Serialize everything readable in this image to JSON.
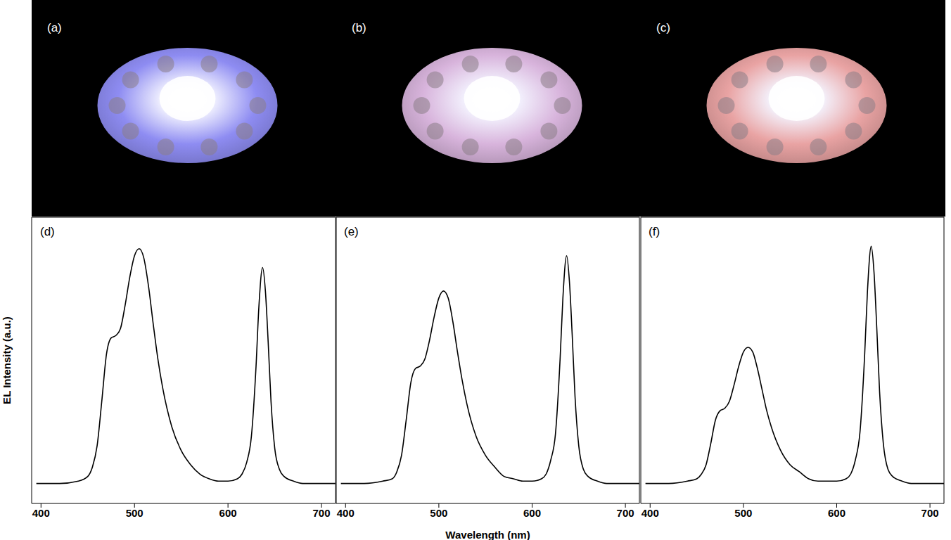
{
  "photos": [
    {
      "label": "(a)",
      "color": "#8e8cf2"
    },
    {
      "label": "(b)",
      "color": "#d8b4dc"
    },
    {
      "label": "(c)",
      "color": "#e9a3a3"
    }
  ],
  "chart_data": [
    {
      "type": "line",
      "label": "(d)",
      "y_label": "EL Intensity (a.u.)",
      "color": "#000000",
      "xlim": [
        390,
        715
      ],
      "xticks": [
        400,
        500,
        600,
        700
      ],
      "ylim": [
        -0.085,
        1.134
      ],
      "tick_labels": "x",
      "x": [
        395,
        400,
        420,
        440,
        450,
        455,
        460,
        465,
        470,
        475,
        480,
        485,
        490,
        495,
        500,
        505,
        510,
        515,
        520,
        525,
        530,
        540,
        550,
        560,
        570,
        580,
        590,
        600,
        610,
        615,
        620,
        625,
        630,
        633,
        637,
        640,
        643,
        646,
        650,
        655,
        660,
        670,
        680,
        700,
        715
      ],
      "values": [
        0,
        0,
        0,
        0.01,
        0.03,
        0.07,
        0.16,
        0.35,
        0.55,
        0.62,
        0.63,
        0.66,
        0.76,
        0.88,
        0.97,
        1.0,
        0.96,
        0.84,
        0.68,
        0.53,
        0.41,
        0.24,
        0.14,
        0.08,
        0.04,
        0.02,
        0.01,
        0.01,
        0.02,
        0.04,
        0.09,
        0.2,
        0.5,
        0.75,
        0.92,
        0.82,
        0.6,
        0.35,
        0.15,
        0.06,
        0.03,
        0.01,
        0,
        0,
        0
      ]
    },
    {
      "type": "line",
      "label": "(e)",
      "x_label": "Wavelength (nm)",
      "color": "#000000",
      "xlim": [
        390,
        715
      ],
      "xticks": [
        400,
        500,
        600,
        700
      ],
      "ylim": [
        -0.085,
        1.134
      ],
      "tick_labels": "x",
      "x": [
        395,
        400,
        420,
        440,
        450,
        455,
        460,
        465,
        470,
        475,
        480,
        485,
        490,
        495,
        500,
        505,
        510,
        515,
        520,
        525,
        530,
        540,
        550,
        560,
        570,
        580,
        590,
        600,
        610,
        615,
        620,
        625,
        630,
        633,
        637,
        640,
        643,
        646,
        650,
        655,
        660,
        670,
        680,
        700,
        715
      ],
      "values": [
        0,
        0,
        0,
        0.01,
        0.02,
        0.05,
        0.12,
        0.27,
        0.43,
        0.49,
        0.5,
        0.53,
        0.61,
        0.71,
        0.79,
        0.82,
        0.79,
        0.69,
        0.56,
        0.44,
        0.34,
        0.2,
        0.12,
        0.07,
        0.03,
        0.02,
        0.01,
        0.01,
        0.02,
        0.04,
        0.1,
        0.21,
        0.53,
        0.79,
        0.97,
        0.86,
        0.63,
        0.37,
        0.16,
        0.06,
        0.03,
        0.01,
        0,
        0,
        0
      ]
    },
    {
      "type": "line",
      "label": "(f)",
      "color": "#000000",
      "xlim": [
        390,
        715
      ],
      "xticks": [
        400,
        500,
        600,
        700
      ],
      "ylim": [
        -0.085,
        1.134
      ],
      "tick_labels": "x",
      "x": [
        395,
        400,
        420,
        440,
        450,
        455,
        460,
        465,
        470,
        475,
        480,
        485,
        490,
        495,
        500,
        505,
        510,
        515,
        520,
        525,
        530,
        540,
        550,
        560,
        570,
        580,
        590,
        600,
        610,
        615,
        620,
        625,
        630,
        633,
        637,
        640,
        643,
        646,
        650,
        655,
        660,
        670,
        680,
        700,
        715
      ],
      "values": [
        0,
        0,
        0,
        0.01,
        0.02,
        0.04,
        0.08,
        0.17,
        0.27,
        0.31,
        0.32,
        0.35,
        0.42,
        0.5,
        0.56,
        0.58,
        0.56,
        0.49,
        0.4,
        0.31,
        0.24,
        0.14,
        0.08,
        0.05,
        0.02,
        0.01,
        0.01,
        0.01,
        0.02,
        0.04,
        0.1,
        0.22,
        0.55,
        0.82,
        1.01,
        0.9,
        0.66,
        0.39,
        0.17,
        0.06,
        0.03,
        0.01,
        0,
        0,
        0
      ]
    }
  ]
}
